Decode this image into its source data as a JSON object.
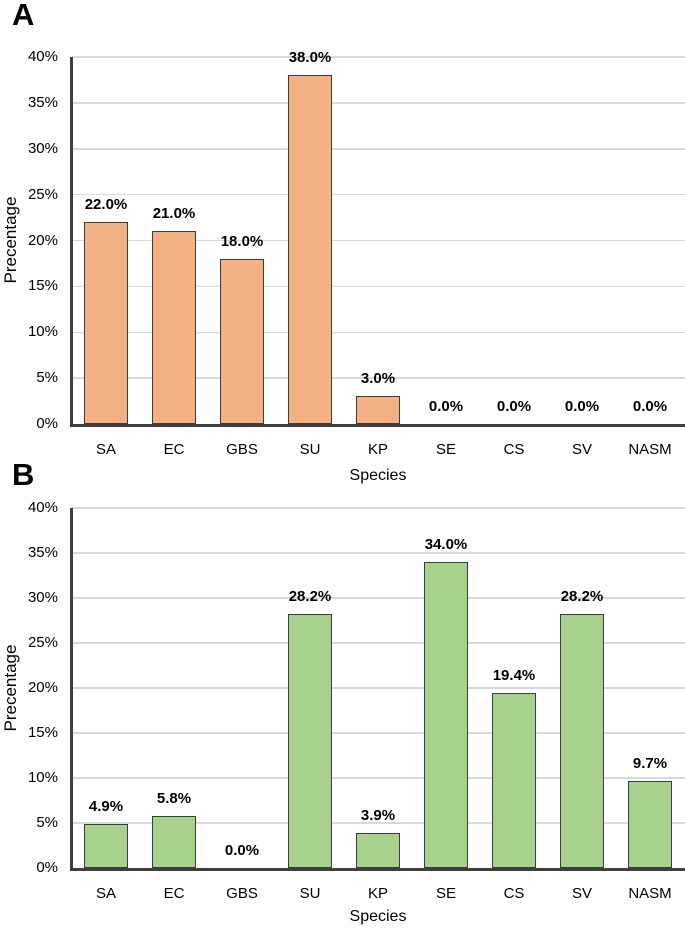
{
  "figure": {
    "background": "#ffffff",
    "text_color": "#000000",
    "grid_color": "#d9d9d9",
    "axis_color": "#3f3f3f"
  },
  "chart_data": [
    {
      "type": "bar",
      "panel_label": "A",
      "xlabel": "Species",
      "ylabel": "Precentage",
      "categories": [
        "SA",
        "EC",
        "GBS",
        "SU",
        "KP",
        "SE",
        "CS",
        "SV",
        "NASM"
      ],
      "values": [
        22.0,
        21.0,
        18.0,
        38.0,
        3.0,
        0.0,
        0.0,
        0.0,
        0.0
      ],
      "data_labels": [
        "22.0%",
        "21.0%",
        "18.0%",
        "38.0%",
        "3.0%",
        "0.0%",
        "0.0%",
        "0.0%",
        "0.0%"
      ],
      "ylim": [
        0,
        40
      ],
      "ytick_step": 5,
      "ytick_labels": [
        "0%",
        "5%",
        "10%",
        "15%",
        "20%",
        "25%",
        "30%",
        "35%",
        "40%"
      ],
      "grid": true,
      "legend": "none",
      "bar_fill": "#f4b183",
      "bar_border": "#3b3b3b"
    },
    {
      "type": "bar",
      "panel_label": "B",
      "xlabel": "Species",
      "ylabel": "Precentage",
      "categories": [
        "SA",
        "EC",
        "GBS",
        "SU",
        "KP",
        "SE",
        "CS",
        "SV",
        "NASM"
      ],
      "values": [
        4.9,
        5.8,
        0.0,
        28.2,
        3.9,
        34.0,
        19.4,
        28.2,
        9.7
      ],
      "data_labels": [
        "4.9%",
        "5.8%",
        "0.0%",
        "28.2%",
        "3.9%",
        "34.0%",
        "19.4%",
        "28.2%",
        "9.7%"
      ],
      "ylim": [
        0,
        40
      ],
      "ytick_step": 5,
      "ytick_labels": [
        "0%",
        "5%",
        "10%",
        "15%",
        "20%",
        "25%",
        "30%",
        "35%",
        "40%"
      ],
      "grid": true,
      "legend": "none",
      "bar_fill": "#a9d18e",
      "bar_border": "#3b3b3b"
    }
  ]
}
